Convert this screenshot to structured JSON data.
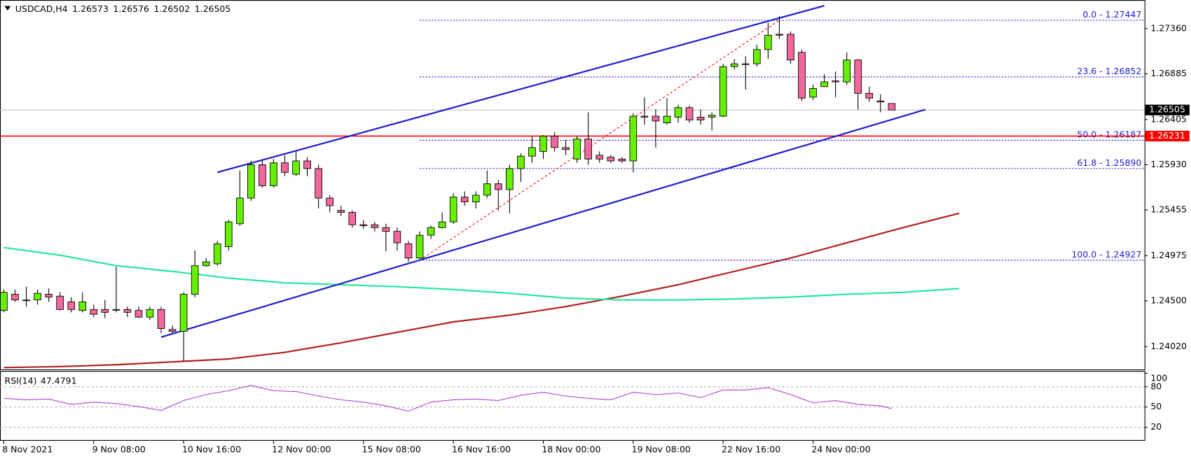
{
  "chart_data": {
    "type": "candlestick",
    "symbol": "USDCAD,H4",
    "up_color": "#66f000",
    "down_color": "#f2679c",
    "wick_color": "#000000",
    "categories": [
      "8 Nov 2021",
      null,
      null,
      null,
      null,
      null,
      null,
      null,
      "9 Nov 08:00",
      null,
      null,
      null,
      null,
      null,
      null,
      null,
      "10 Nov 16:00",
      null,
      null,
      null,
      null,
      null,
      null,
      null,
      "12 Nov 00:00",
      null,
      null,
      null,
      null,
      null,
      null,
      null,
      "15 Nov 08:00",
      null,
      null,
      null,
      null,
      null,
      null,
      null,
      "16 Nov 16:00",
      null,
      null,
      null,
      null,
      null,
      null,
      null,
      "18 Nov 00:00",
      null,
      null,
      null,
      null,
      null,
      null,
      null,
      "19 Nov 08:00",
      null,
      null,
      null,
      null,
      null,
      null,
      null,
      "22 Nov 16:00",
      null,
      null,
      null,
      null,
      null,
      null,
      null,
      "24 Nov 00:00",
      null,
      null,
      null,
      null,
      null,
      null,
      null
    ],
    "open": [
      1.244,
      1.2457,
      1.2451,
      1.2451,
      1.2457,
      1.2455,
      1.2449,
      1.244,
      1.2441,
      1.2441,
      1.2441,
      1.2441,
      1.244,
      1.2433,
      1.2441,
      1.242,
      1.2418,
      1.2457,
      1.2487,
      1.2489,
      1.2507,
      1.2531,
      1.2558,
      1.2593,
      1.2571,
      1.2595,
      1.2583,
      1.2597,
      1.2589,
      1.2558,
      1.2545,
      1.2543,
      1.253,
      1.253,
      1.2527,
      1.2523,
      1.251,
      1.2495,
      1.2519,
      1.2527,
      1.2533,
      1.2559,
      1.2554,
      1.2561,
      1.2573,
      1.2567,
      1.2589,
      1.2602,
      1.2607,
      1.2623,
      1.2611,
      1.2599,
      1.262,
      1.2603,
      1.2601,
      1.2599,
      1.2597,
      1.2644,
      1.2644,
      1.2637,
      1.2643,
      1.2653,
      1.2643,
      1.2643,
      1.2644,
      1.2696,
      1.2699,
      1.2699,
      1.2714,
      1.273,
      1.273,
      1.2711,
      1.2664,
      1.2675,
      1.2681,
      1.268,
      1.2703,
      1.2668,
      1.266,
      1.26573
    ],
    "high": [
      1.2462,
      1.2462,
      1.2465,
      1.2462,
      1.2463,
      1.2459,
      1.2454,
      1.2459,
      1.2446,
      1.2451,
      1.2486,
      1.2444,
      1.2444,
      1.2444,
      1.2444,
      1.2424,
      1.2459,
      1.2503,
      1.2495,
      1.2513,
      1.2535,
      1.2587,
      1.2597,
      1.2597,
      1.2599,
      1.2603,
      1.2607,
      1.2601,
      1.2593,
      1.2561,
      1.255,
      1.2545,
      1.2535,
      1.2533,
      1.2531,
      1.2527,
      1.2513,
      1.2523,
      1.2529,
      1.2543,
      1.2563,
      1.2565,
      1.2565,
      1.2587,
      1.2577,
      1.2593,
      1.2605,
      1.2623,
      1.2624,
      1.2627,
      1.2619,
      1.2623,
      1.2648,
      1.2607,
      1.2603,
      1.2601,
      1.2647,
      1.2664,
      1.2651,
      1.2663,
      1.2656,
      1.2655,
      1.2651,
      1.2648,
      1.2699,
      1.2704,
      1.2707,
      1.2719,
      1.2742,
      1.2749,
      1.2733,
      1.2714,
      1.2677,
      1.2688,
      1.2691,
      1.2711,
      1.2704,
      1.2675,
      1.2667,
      1.26576
    ],
    "low": [
      1.2438,
      1.2449,
      1.2444,
      1.2446,
      1.2449,
      1.244,
      1.2438,
      1.2438,
      1.2433,
      1.2432,
      1.2438,
      1.2433,
      1.2432,
      1.243,
      1.2416,
      1.2416,
      1.2387,
      1.2454,
      1.2486,
      1.2487,
      1.2503,
      1.2529,
      1.2555,
      1.2569,
      1.2569,
      1.2581,
      1.2581,
      1.2581,
      1.2547,
      1.2543,
      1.2539,
      1.2527,
      1.2526,
      1.2523,
      1.2502,
      1.2503,
      1.2491,
      1.2494,
      1.2515,
      1.2526,
      1.2531,
      1.255,
      1.2547,
      1.2558,
      1.2545,
      1.2542,
      1.2575,
      1.2595,
      1.2599,
      1.2607,
      1.2603,
      1.2595,
      1.2593,
      1.2595,
      1.2595,
      1.2595,
      1.2585,
      1.2635,
      1.2611,
      1.2635,
      1.2637,
      1.2637,
      1.2635,
      1.2629,
      1.2643,
      1.2693,
      1.2672,
      1.2696,
      1.2704,
      1.2725,
      1.2699,
      1.266,
      1.2661,
      1.2675,
      1.2664,
      1.2677,
      1.2651,
      1.2659,
      1.2648,
      1.26502
    ],
    "close": [
      1.2459,
      1.2451,
      1.2451,
      1.2458,
      1.2454,
      1.2441,
      1.2441,
      1.2449,
      1.2436,
      1.2438,
      1.2441,
      1.2438,
      1.2433,
      1.2441,
      1.2421,
      1.2418,
      1.2457,
      1.2487,
      1.2491,
      1.251,
      1.2533,
      1.2558,
      1.2593,
      1.2571,
      1.2595,
      1.2585,
      1.2597,
      1.2589,
      1.2558,
      1.255,
      1.2543,
      1.253,
      1.2529,
      1.2527,
      1.2523,
      1.2511,
      1.2495,
      1.2519,
      1.2527,
      1.2533,
      1.2559,
      1.2554,
      1.2561,
      1.2573,
      1.2567,
      1.2589,
      1.2602,
      1.2611,
      1.2623,
      1.2611,
      1.2609,
      1.262,
      1.2599,
      1.2599,
      1.2597,
      1.2597,
      1.2644,
      1.2643,
      1.2639,
      1.2644,
      1.2653,
      1.264,
      1.264,
      1.2645,
      1.2696,
      1.2699,
      1.2699,
      1.2714,
      1.2729,
      1.2729,
      1.2703,
      1.2663,
      1.2673,
      1.268,
      1.268,
      1.2703,
      1.2668,
      1.2663,
      1.2659,
      1.26505
    ],
    "ylim": [
      1.2378,
      1.2766
    ],
    "yticks": [
      {
        "value": 1.2736,
        "label": "1.27360"
      },
      1.26885,
      1.26405,
      {
        "value": 1.2593,
        "label": "1.25930"
      },
      1.25455,
      1.24975,
      {
        "value": 1.245,
        "label": "1.24500"
      },
      {
        "value": 1.2402,
        "label": "1.24020"
      }
    ],
    "price_line_color": "#c0c0c0",
    "horizontal_line": {
      "value": 1.26231,
      "color": "#ff0000"
    },
    "fibonacci": {
      "color": "#1c1cd0",
      "anchor_color": "#ff0000",
      "anchor_x": [
        37,
        69
      ],
      "start_x": 37,
      "levels": [
        {
          "label": "0.0 - 1.27447",
          "price": 1.27447
        },
        {
          "label": "23.6 - 1.26852",
          "price": 1.26852
        },
        {
          "label": "50.0 - 1.26187",
          "price": 1.26187
        },
        {
          "label": "61.8 - 1.25890",
          "price": 1.2589
        },
        {
          "label": "100.0 - 1.24927",
          "price": 1.24927
        }
      ]
    },
    "trendlines": [
      {
        "color": "#1a1acd",
        "x": [
          19,
          73
        ],
        "values": [
          1.2585,
          1.276
        ]
      },
      {
        "color": "#1a1acd",
        "x": [
          14,
          82
        ],
        "values": [
          1.2412,
          1.2651
        ]
      }
    ],
    "moving_averages": [
      {
        "color": "#b21e1e",
        "x": [
          0,
          5,
          10,
          15,
          20,
          25,
          30,
          35,
          40,
          45,
          50,
          55,
          60,
          65,
          70,
          75,
          80,
          85
        ],
        "values": [
          1.238,
          1.2381,
          1.2383,
          1.2386,
          1.2389,
          1.2396,
          1.2406,
          1.2417,
          1.2428,
          1.2435,
          1.2444,
          1.2455,
          1.2467,
          1.2481,
          1.2495,
          1.2511,
          1.2527,
          1.2542
        ]
      },
      {
        "color": "#22e89a",
        "x": [
          0,
          5,
          10,
          15,
          20,
          25,
          30,
          35,
          40,
          45,
          50,
          55,
          60,
          65,
          70,
          75,
          80,
          85
        ],
        "values": [
          1.2506,
          1.2498,
          1.2487,
          1.2481,
          1.2474,
          1.2469,
          1.2467,
          1.2465,
          1.2462,
          1.2458,
          1.2453,
          1.2451,
          1.2451,
          1.2452,
          1.2454,
          1.2457,
          1.2459,
          1.2463
        ]
      }
    ],
    "rsi": {
      "name": "RSI(14)",
      "color": "#b040d8",
      "x": [
        0,
        2,
        4,
        6,
        8,
        10,
        12,
        14,
        16,
        18,
        20,
        22,
        24,
        26,
        28,
        30,
        32,
        34,
        36,
        38,
        40,
        42,
        44,
        46,
        48,
        50,
        52,
        54,
        56,
        58,
        60,
        62,
        64,
        66,
        68,
        70,
        72,
        74,
        76,
        78,
        79
      ],
      "values": [
        62.9,
        60.7,
        61.8,
        53.9,
        57.3,
        55.1,
        50.6,
        44.9,
        59.6,
        68.5,
        74.2,
        82.0,
        74.2,
        73.0,
        66.3,
        60.7,
        57.3,
        51.7,
        43.8,
        57.3,
        60.7,
        61.8,
        59.6,
        67.4,
        71.9,
        66.3,
        62.9,
        60.7,
        71.9,
        68.5,
        70.8,
        64.0,
        75.3,
        75.3,
        78.7,
        68.5,
        56.2,
        59.6,
        53.9,
        51.7,
        47.4791
      ],
      "ylim": [
        0,
        100
      ],
      "yticks": [
        100,
        80,
        50,
        20
      ]
    }
  }
}
